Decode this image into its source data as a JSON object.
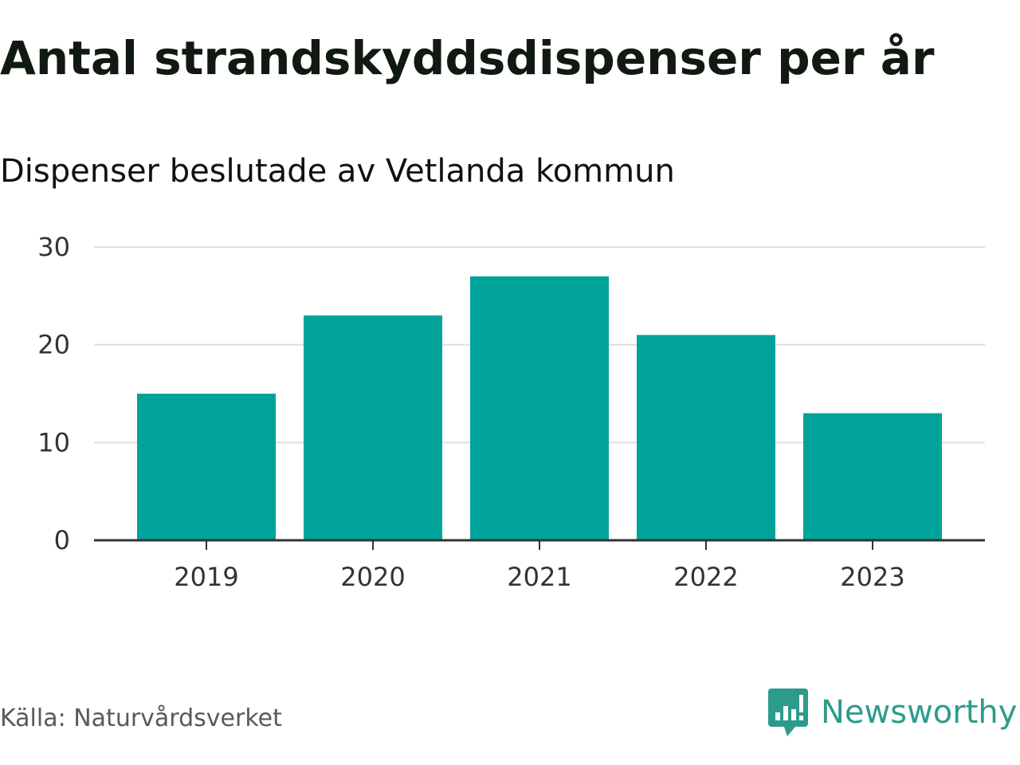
{
  "chart_data": {
    "type": "bar",
    "title": "Antal strandskyddsdispenser per år",
    "subtitle": "Dispenser beslutade av Vetlanda kommun",
    "categories": [
      "2019",
      "2020",
      "2021",
      "2022",
      "2023"
    ],
    "values": [
      15,
      23,
      27,
      21,
      13
    ],
    "xlabel": "",
    "ylabel": "",
    "ylim": [
      0,
      30
    ],
    "yticks": [
      0,
      10,
      20,
      30
    ],
    "grid": true,
    "bar_color": "#00a39a",
    "grid_color": "#dddddd",
    "axis_color": "#333333"
  },
  "source": "Källa: Naturvårdsverket",
  "brand": {
    "name": "Newsworthy",
    "icon": "newsworthy-logo-icon",
    "color": "#2d9b8c"
  }
}
